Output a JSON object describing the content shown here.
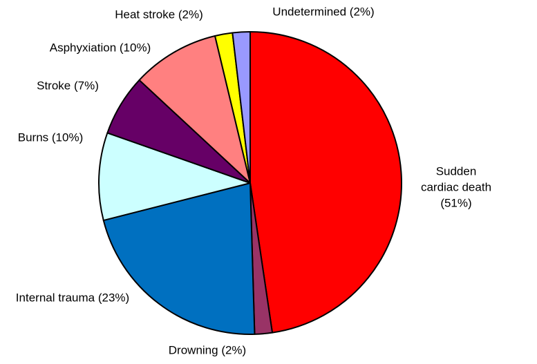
{
  "chart_data": {
    "type": "pie",
    "categories": [
      "Sudden cardiac death (51%)",
      "Drowning (2%)",
      "Internal trauma (23%)",
      "Burns (10%)",
      "Stroke (7%)",
      "Asphyxiation (10%)",
      "Heat stroke (2%)",
      "Undetermined (2%)"
    ],
    "values": [
      51,
      2,
      23,
      10,
      7,
      10,
      2,
      2
    ],
    "colors": [
      "#ff0000",
      "#993366",
      "#0070c0",
      "#ccffff",
      "#660066",
      "#ff8080",
      "#ffff00",
      "#9999ff"
    ]
  }
}
